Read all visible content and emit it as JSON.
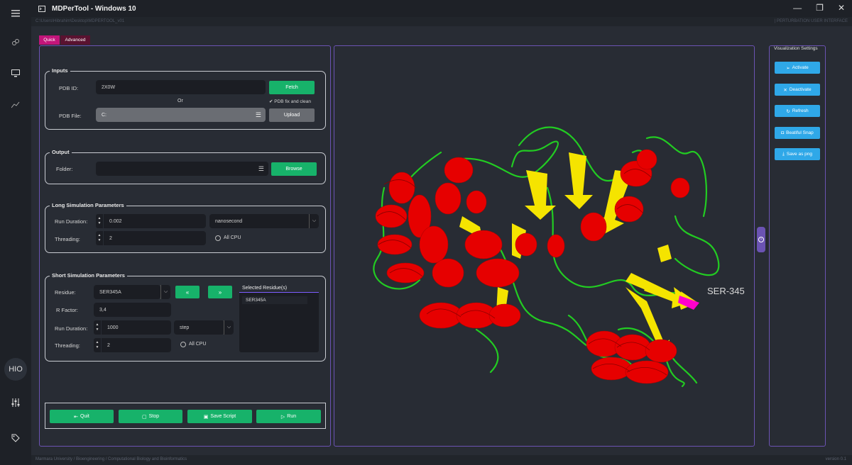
{
  "window": {
    "title": "MDPerTool - Windows 10",
    "path": "C:\\Users\\Hibrahim\\Desktop\\MDPERTOOL_v01",
    "right_label": "| PERTURBATION USER INTERFACE",
    "controls": [
      "minimize-icon",
      "maximize-icon",
      "close-icon"
    ]
  },
  "sidebar": {
    "menu": "menu-icon",
    "hio": "HIO",
    "colors": {
      "bg": "#1e2127"
    }
  },
  "tabs": [
    {
      "label": "Quick",
      "color": "#c2157a"
    },
    {
      "label": "Advanced",
      "color": "#5a1230"
    }
  ],
  "inputs": {
    "title": "Inputs",
    "pdb_id_label": "PDB ID:",
    "pdb_id_value": "2X0W",
    "fetch": "Fetch",
    "or": "Or",
    "fix_clean": "PDB fix and clean",
    "pdb_file_label": "PDB File:",
    "pdb_file_value": "C:",
    "upload": "Upload"
  },
  "output": {
    "title": "Output",
    "folder_label": "Folder:",
    "folder_value": "",
    "browse": "Browse"
  },
  "long_sim": {
    "title": "Long Simulation Parameters",
    "run_duration_label": "Run Duration:",
    "run_duration_value": "0.002",
    "unit": "nanosecond",
    "threading_label": "Threading:",
    "threading_value": "2",
    "all_cpu": "All CPU"
  },
  "short_sim": {
    "title": "Short Simulation Parameters",
    "residue_label": "Residue:",
    "residue_value": "SER345A",
    "selected_header": "Selected Residue(s)",
    "selected": [
      "SER345A"
    ],
    "r_factor_label": "R Factor:",
    "r_factor_value": "3,4",
    "run_duration_label": "Run Duration:",
    "run_duration_value": "1000",
    "unit": "step",
    "threading_label": "Threading:",
    "threading_value": "2",
    "all_cpu": "All CPU"
  },
  "actions": {
    "quit": "Quit",
    "stop": "Stop",
    "save_script": "Save Script",
    "run": "Run"
  },
  "viewer": {
    "residue_label": "SER-345",
    "colors": {
      "helix": "#ff0000",
      "sheet": "#f5e400",
      "loop": "#22cc22",
      "highlight": "#ff00cc"
    }
  },
  "vis": {
    "title": "Visualization Settings",
    "activate": "Activate",
    "deactivate": "Deactivate",
    "refresh": "Refresh",
    "snap": "Beatiful Snap",
    "save_png": "Save as png"
  },
  "footer": {
    "left": "Marmara University / Bioengineering / Computational Biology and Bioinformatics",
    "right": "version 0.1"
  },
  "accent": {
    "green": "#17b26a",
    "cyan": "#2fa8e8",
    "purple": "#6b53b3"
  }
}
